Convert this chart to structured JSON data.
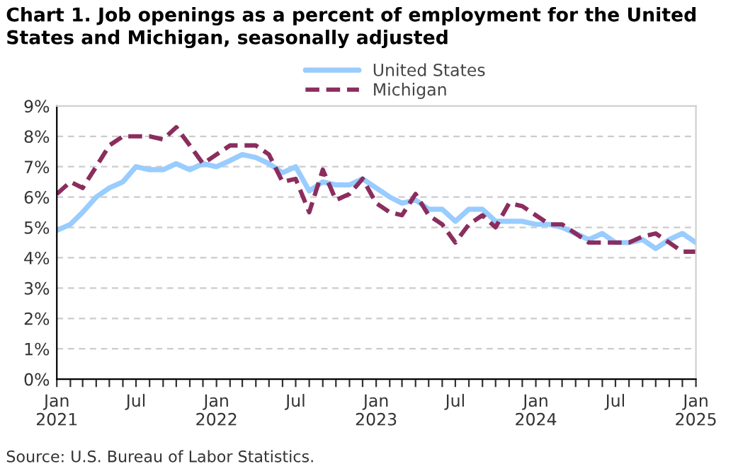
{
  "chart_data": {
    "type": "line",
    "title": "Chart 1. Job openings as a percent of employment for the United States and Michigan, seasonally adjusted",
    "annotations": [
      "Source: U.S. Bureau of Labor Statistics."
    ],
    "x": [
      "2021-01",
      "2021-02",
      "2021-03",
      "2021-04",
      "2021-05",
      "2021-06",
      "2021-07",
      "2021-08",
      "2021-09",
      "2021-10",
      "2021-11",
      "2021-12",
      "2022-01",
      "2022-02",
      "2022-03",
      "2022-04",
      "2022-05",
      "2022-06",
      "2022-07",
      "2022-08",
      "2022-09",
      "2022-10",
      "2022-11",
      "2022-12",
      "2023-01",
      "2023-02",
      "2023-03",
      "2023-04",
      "2023-05",
      "2023-06",
      "2023-07",
      "2023-08",
      "2023-09",
      "2023-10",
      "2023-11",
      "2023-12",
      "2024-01",
      "2024-02",
      "2024-03",
      "2024-04",
      "2024-05",
      "2024-06",
      "2024-07",
      "2024-08",
      "2024-09",
      "2024-10",
      "2024-11",
      "2024-12",
      "2025-01"
    ],
    "series": [
      {
        "name": "United States",
        "color": "#99ccff",
        "line_style": "solid",
        "values": [
          4.9,
          5.1,
          5.5,
          6.0,
          6.3,
          6.5,
          7.0,
          6.9,
          6.9,
          7.1,
          6.9,
          7.1,
          7.0,
          7.2,
          7.4,
          7.3,
          7.1,
          6.8,
          7.0,
          6.2,
          6.5,
          6.4,
          6.4,
          6.6,
          6.3,
          6.0,
          5.8,
          5.9,
          5.6,
          5.6,
          5.2,
          5.6,
          5.6,
          5.2,
          5.2,
          5.2,
          5.1,
          5.1,
          5.0,
          4.8,
          4.6,
          4.8,
          4.5,
          4.5,
          4.6,
          4.3,
          4.6,
          4.8,
          4.5
        ]
      },
      {
        "name": "Michigan",
        "color": "#8b2d5e",
        "line_style": "dashed",
        "values": [
          6.1,
          6.5,
          6.3,
          7.0,
          7.7,
          8.0,
          8.0,
          8.0,
          7.9,
          8.3,
          7.7,
          7.1,
          7.4,
          7.7,
          7.7,
          7.7,
          7.4,
          6.5,
          6.6,
          5.5,
          6.9,
          5.9,
          6.1,
          6.6,
          5.8,
          5.5,
          5.4,
          6.1,
          5.4,
          5.1,
          4.5,
          5.1,
          5.4,
          5.0,
          5.8,
          5.7,
          5.4,
          5.1,
          5.1,
          4.8,
          4.5,
          4.5,
          4.5,
          4.5,
          4.7,
          4.8,
          4.5,
          4.2,
          4.2
        ]
      }
    ],
    "xlim": [
      "2021-01",
      "2025-01"
    ],
    "xticks": [
      {
        "value": "2021-01",
        "label": "Jan\n2021"
      },
      {
        "value": "2021-02",
        "label": null
      },
      {
        "value": "2021-03",
        "label": null
      },
      {
        "value": "2021-04",
        "label": null
      },
      {
        "value": "2021-05",
        "label": null
      },
      {
        "value": "2021-06",
        "label": null
      },
      {
        "value": "2021-07",
        "label": "Jul"
      },
      {
        "value": "2021-08",
        "label": null
      },
      {
        "value": "2021-09",
        "label": null
      },
      {
        "value": "2021-10",
        "label": null
      },
      {
        "value": "2021-11",
        "label": null
      },
      {
        "value": "2021-12",
        "label": null
      },
      {
        "value": "2022-01",
        "label": "Jan\n2022"
      },
      {
        "value": "2022-02",
        "label": null
      },
      {
        "value": "2022-03",
        "label": null
      },
      {
        "value": "2022-04",
        "label": null
      },
      {
        "value": "2022-05",
        "label": null
      },
      {
        "value": "2022-06",
        "label": null
      },
      {
        "value": "2022-07",
        "label": "Jul"
      },
      {
        "value": "2022-08",
        "label": null
      },
      {
        "value": "2022-09",
        "label": null
      },
      {
        "value": "2022-10",
        "label": null
      },
      {
        "value": "2022-11",
        "label": null
      },
      {
        "value": "2022-12",
        "label": null
      },
      {
        "value": "2023-01",
        "label": "Jan\n2023"
      },
      {
        "value": "2023-02",
        "label": null
      },
      {
        "value": "2023-03",
        "label": null
      },
      {
        "value": "2023-04",
        "label": null
      },
      {
        "value": "2023-05",
        "label": null
      },
      {
        "value": "2023-06",
        "label": null
      },
      {
        "value": "2023-07",
        "label": "Jul"
      },
      {
        "value": "2023-08",
        "label": null
      },
      {
        "value": "2023-09",
        "label": null
      },
      {
        "value": "2023-10",
        "label": null
      },
      {
        "value": "2023-11",
        "label": null
      },
      {
        "value": "2023-12",
        "label": null
      },
      {
        "value": "2024-01",
        "label": "Jan\n2024"
      },
      {
        "value": "2024-02",
        "label": null
      },
      {
        "value": "2024-03",
        "label": null
      },
      {
        "value": "2024-04",
        "label": null
      },
      {
        "value": "2024-05",
        "label": null
      },
      {
        "value": "2024-06",
        "label": null
      },
      {
        "value": "2024-07",
        "label": "Jul"
      },
      {
        "value": "2024-08",
        "label": null
      },
      {
        "value": "2024-09",
        "label": null
      },
      {
        "value": "2024-10",
        "label": null
      },
      {
        "value": "2024-11",
        "label": null
      },
      {
        "value": "2024-12",
        "label": null
      },
      {
        "value": "2025-01",
        "label": "Jan\n2025"
      }
    ],
    "ylim": [
      0,
      9
    ],
    "yticks": [
      {
        "value": 0,
        "label": "0%"
      },
      {
        "value": 1,
        "label": "1%"
      },
      {
        "value": 2,
        "label": "2%"
      },
      {
        "value": 3,
        "label": "3%"
      },
      {
        "value": 4,
        "label": "4%"
      },
      {
        "value": 5,
        "label": "5%"
      },
      {
        "value": 6,
        "label": "6%"
      },
      {
        "value": 7,
        "label": "7%"
      },
      {
        "value": 8,
        "label": "8%"
      },
      {
        "value": 9,
        "label": "9%"
      }
    ],
    "grid": "y",
    "legend": "top",
    "marker": "none"
  }
}
